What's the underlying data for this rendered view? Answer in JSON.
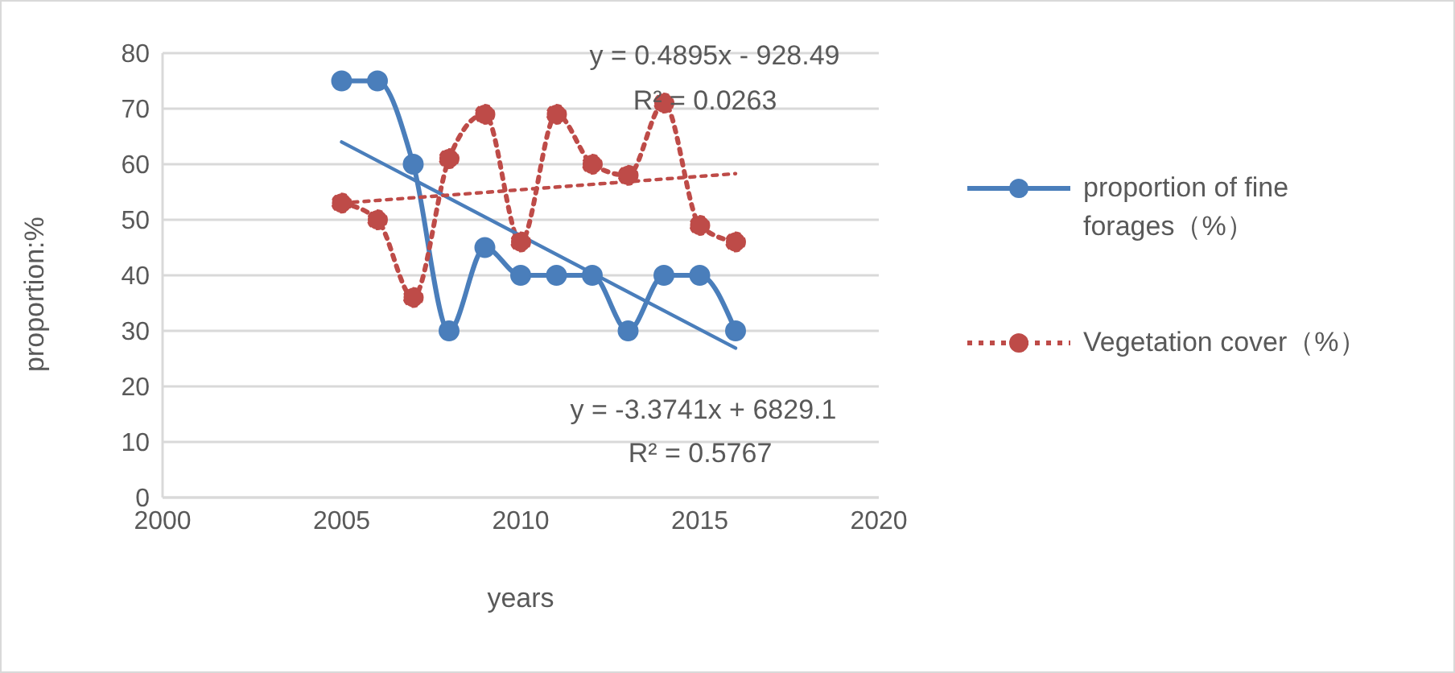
{
  "chart_data": {
    "type": "line",
    "xlabel": "years",
    "ylabel": "proportion:%",
    "xlim": [
      2000,
      2020
    ],
    "xticks": [
      2000,
      2005,
      2010,
      2015,
      2020
    ],
    "ylim": [
      0,
      80
    ],
    "yticks": [
      0,
      10,
      20,
      30,
      40,
      50,
      60,
      70,
      80
    ],
    "grid": "y",
    "legend": "right",
    "marker": "circle",
    "x": [
      2005,
      2006,
      2007,
      2008,
      2009,
      2010,
      2011,
      2012,
      2013,
      2014,
      2015,
      2016
    ],
    "series": [
      {
        "name": "proportion of fine forages（%）",
        "color": "#4a7ebb",
        "line_style": "solid",
        "values": [
          75,
          75,
          60,
          30,
          45,
          40,
          40,
          40,
          30,
          40,
          40,
          30
        ]
      },
      {
        "name": "Vegetation cover（%）",
        "color": "#be4b48",
        "line_style": "dotted",
        "values": [
          53,
          50,
          36,
          61,
          69,
          46,
          69,
          60,
          58,
          71,
          49,
          46
        ]
      },
      {
        "type": "line",
        "color": "#4a7ebb",
        "line_style": "solid",
        "marker": "none",
        "values": [
          64.0,
          null,
          null,
          null,
          null,
          null,
          null,
          null,
          null,
          null,
          null,
          26.9
        ]
      },
      {
        "type": "line",
        "color": "#be4b48",
        "line_style": "dotted",
        "marker": "none",
        "values": [
          53.0,
          null,
          null,
          null,
          null,
          null,
          null,
          null,
          null,
          null,
          null,
          58.3
        ]
      }
    ],
    "annotations": [
      "y = 0.4895x - 928.49",
      "R² = 0.0263",
      "y = -3.3741x + 6829.1",
      "R² = 0.5767"
    ]
  }
}
